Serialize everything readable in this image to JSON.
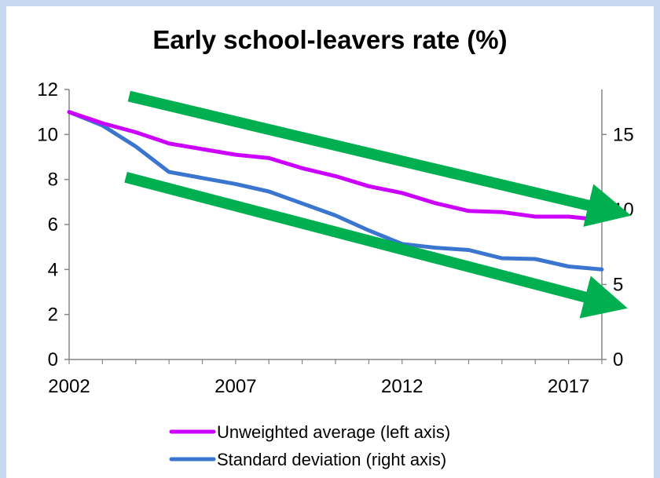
{
  "chart_data": {
    "type": "line",
    "title": "Early school-leavers rate (%)",
    "x": [
      2002,
      2003,
      2004,
      2005,
      2006,
      2007,
      2008,
      2009,
      2010,
      2011,
      2012,
      2013,
      2014,
      2015,
      2016,
      2017,
      2018
    ],
    "x_ticks": [
      "2002",
      "2007",
      "2012",
      "2017"
    ],
    "y_left": {
      "ticks": [
        "0",
        "2",
        "4",
        "6",
        "8",
        "10",
        "12"
      ],
      "ylim": [
        0,
        12
      ]
    },
    "y_right": {
      "ticks": [
        "0",
        "5",
        "10",
        "15"
      ],
      "ylim": [
        0,
        18
      ]
    },
    "series": [
      {
        "name": "Unweighted average (left axis)",
        "axis": "left",
        "color": "#cc00ff",
        "values": [
          11.0,
          10.5,
          10.1,
          9.6,
          9.35,
          9.1,
          8.95,
          8.5,
          8.15,
          7.7,
          7.4,
          6.95,
          6.6,
          6.55,
          6.35,
          6.35,
          6.2
        ]
      },
      {
        "name": "Standard deviation (right axis)",
        "axis": "right",
        "color": "#3a76d0",
        "values": [
          16.5,
          15.6,
          14.2,
          12.5,
          12.1,
          11.7,
          11.2,
          10.4,
          9.6,
          8.6,
          7.7,
          7.45,
          7.3,
          6.75,
          6.7,
          6.2,
          6.0
        ]
      }
    ],
    "annotations": [
      {
        "type": "arrow",
        "color": "#00b050",
        "meaning": "downward trend (upper)",
        "from_data": [
          2003.8,
          11.7
        ],
        "to_data": [
          2018.3,
          6.6
        ]
      },
      {
        "type": "arrow",
        "color": "#00b050",
        "meaning": "downward trend (lower)",
        "from_data": [
          2003.7,
          8.1
        ],
        "to_data": [
          2018.2,
          2.5
        ]
      }
    ],
    "grid": false,
    "legend_position": "bottom"
  }
}
